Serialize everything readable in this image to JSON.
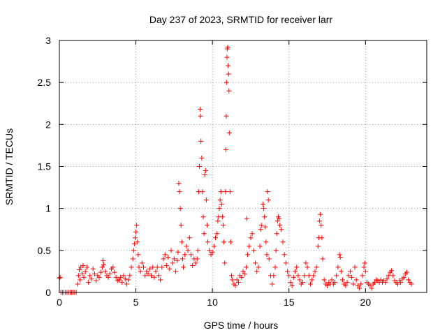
{
  "chart_data": {
    "type": "scatter",
    "title": "Day 237 of 2023, SRMTID for receiver larr",
    "xlabel": "GPS time / hours",
    "ylabel": "SRMTID / TECUs",
    "xlim": [
      0,
      24
    ],
    "ylim": [
      0,
      3
    ],
    "xticks": [
      0,
      5,
      10,
      15,
      20
    ],
    "xtick_labels": [
      "0",
      "5",
      "10",
      "15",
      "20"
    ],
    "yticks": [
      0,
      0.5,
      1,
      1.5,
      2,
      2.5,
      3
    ],
    "ytick_labels": [
      "0",
      "0.5",
      "1",
      "1.5",
      "2",
      "2.5",
      "3"
    ],
    "grid": true,
    "marker": "+",
    "color": "#ff0000",
    "series": [
      {
        "name": "SRMTID",
        "points": [
          [
            0.0,
            0.17
          ],
          [
            0.05,
            0.18
          ],
          [
            0.1,
            0.0
          ],
          [
            0.2,
            0.0
          ],
          [
            0.3,
            0.0
          ],
          [
            0.4,
            0.0
          ],
          [
            0.5,
            0.0
          ],
          [
            0.6,
            0.0
          ],
          [
            0.7,
            0.0
          ],
          [
            0.8,
            0.0
          ],
          [
            0.9,
            0.0
          ],
          [
            1.0,
            0.0
          ],
          [
            1.1,
            0.0
          ],
          [
            1.2,
            0.1
          ],
          [
            1.25,
            0.2
          ],
          [
            1.3,
            0.27
          ],
          [
            1.35,
            0.15
          ],
          [
            1.4,
            0.3
          ],
          [
            1.5,
            0.22
          ],
          [
            1.55,
            0.32
          ],
          [
            1.6,
            0.18
          ],
          [
            1.7,
            0.25
          ],
          [
            1.8,
            0.3
          ],
          [
            1.9,
            0.12
          ],
          [
            2.0,
            0.2
          ],
          [
            2.1,
            0.16
          ],
          [
            2.2,
            0.28
          ],
          [
            2.3,
            0.22
          ],
          [
            2.4,
            0.14
          ],
          [
            2.5,
            0.2
          ],
          [
            2.6,
            0.18
          ],
          [
            2.7,
            0.24
          ],
          [
            2.8,
            0.3
          ],
          [
            2.85,
            0.38
          ],
          [
            2.9,
            0.33
          ],
          [
            3.0,
            0.25
          ],
          [
            3.1,
            0.2
          ],
          [
            3.2,
            0.18
          ],
          [
            3.3,
            0.22
          ],
          [
            3.4,
            0.28
          ],
          [
            3.5,
            0.3
          ],
          [
            3.6,
            0.24
          ],
          [
            3.7,
            0.18
          ],
          [
            3.8,
            0.14
          ],
          [
            3.9,
            0.15
          ],
          [
            4.0,
            0.18
          ],
          [
            4.1,
            0.12
          ],
          [
            4.2,
            0.2
          ],
          [
            4.3,
            0.16
          ],
          [
            4.4,
            0.1
          ],
          [
            4.5,
            0.15
          ],
          [
            4.6,
            0.2
          ],
          [
            4.7,
            0.3
          ],
          [
            4.8,
            0.4
          ],
          [
            4.85,
            0.5
          ],
          [
            4.9,
            0.58
          ],
          [
            4.95,
            0.65
          ],
          [
            5.0,
            0.72
          ],
          [
            5.05,
            0.8
          ],
          [
            5.1,
            0.6
          ],
          [
            5.15,
            0.45
          ],
          [
            5.2,
            0.3
          ],
          [
            5.3,
            0.25
          ],
          [
            5.4,
            0.35
          ],
          [
            5.5,
            0.3
          ],
          [
            5.6,
            0.2
          ],
          [
            5.7,
            0.25
          ],
          [
            5.8,
            0.22
          ],
          [
            5.9,
            0.28
          ],
          [
            6.0,
            0.2
          ],
          [
            6.1,
            0.3
          ],
          [
            6.2,
            0.18
          ],
          [
            6.3,
            0.25
          ],
          [
            6.4,
            0.3
          ],
          [
            6.5,
            0.2
          ],
          [
            6.6,
            0.15
          ],
          [
            6.7,
            0.3
          ],
          [
            6.8,
            0.4
          ],
          [
            6.9,
            0.45
          ],
          [
            7.0,
            0.32
          ],
          [
            7.1,
            0.42
          ],
          [
            7.2,
            0.28
          ],
          [
            7.3,
            0.5
          ],
          [
            7.4,
            0.35
          ],
          [
            7.5,
            0.4
          ],
          [
            7.6,
            0.25
          ],
          [
            7.7,
            0.38
          ],
          [
            7.75,
            0.48
          ],
          [
            7.8,
            1.3
          ],
          [
            7.85,
            1.2
          ],
          [
            7.9,
            1.0
          ],
          [
            7.95,
            0.8
          ],
          [
            8.0,
            0.6
          ],
          [
            8.05,
            0.4
          ],
          [
            8.1,
            0.3
          ],
          [
            8.2,
            0.45
          ],
          [
            8.3,
            0.55
          ],
          [
            8.4,
            0.5
          ],
          [
            8.5,
            0.65
          ],
          [
            8.6,
            0.45
          ],
          [
            8.7,
            0.32
          ],
          [
            8.8,
            0.4
          ],
          [
            8.9,
            0.35
          ],
          [
            9.0,
            0.4
          ],
          [
            9.05,
            0.5
          ],
          [
            9.1,
            1.2
          ],
          [
            9.15,
            1.5
          ],
          [
            9.2,
            2.18
          ],
          [
            9.22,
            2.1
          ],
          [
            9.25,
            1.8
          ],
          [
            9.3,
            1.6
          ],
          [
            9.35,
            1.2
          ],
          [
            9.4,
            0.9
          ],
          [
            9.45,
            0.7
          ],
          [
            9.5,
            1.4
          ],
          [
            9.55,
            1.45
          ],
          [
            9.6,
            1.1
          ],
          [
            9.65,
            0.8
          ],
          [
            9.7,
            0.6
          ],
          [
            9.8,
            0.5
          ],
          [
            9.9,
            0.45
          ],
          [
            10.0,
            0.48
          ],
          [
            10.1,
            0.55
          ],
          [
            10.2,
            0.65
          ],
          [
            10.3,
            0.7
          ],
          [
            10.35,
            0.85
          ],
          [
            10.4,
            0.9
          ],
          [
            10.45,
            1.0
          ],
          [
            10.5,
            1.1
          ],
          [
            10.55,
            1.2
          ],
          [
            10.6,
            1.05
          ],
          [
            10.65,
            0.9
          ],
          [
            10.7,
            0.8
          ],
          [
            10.75,
            0.6
          ],
          [
            10.8,
            0.35
          ],
          [
            10.85,
            1.2
          ],
          [
            10.88,
            1.7
          ],
          [
            10.9,
            2.1
          ],
          [
            10.92,
            2.5
          ],
          [
            10.95,
            2.8
          ],
          [
            10.97,
            2.9
          ],
          [
            11.0,
            2.92
          ],
          [
            11.02,
            2.7
          ],
          [
            11.05,
            2.6
          ],
          [
            11.08,
            2.4
          ],
          [
            11.1,
            1.9
          ],
          [
            11.15,
            1.2
          ],
          [
            11.2,
            0.6
          ],
          [
            11.25,
            0.2
          ],
          [
            11.3,
            0.15
          ],
          [
            11.4,
            0.1
          ],
          [
            11.5,
            0.08
          ],
          [
            11.6,
            0.15
          ],
          [
            11.7,
            0.12
          ],
          [
            11.8,
            0.2
          ],
          [
            11.9,
            0.18
          ],
          [
            12.0,
            0.25
          ],
          [
            12.1,
            0.22
          ],
          [
            12.2,
            0.3
          ],
          [
            12.25,
            0.88
          ],
          [
            12.3,
            0.45
          ],
          [
            12.4,
            0.55
          ],
          [
            12.5,
            0.65
          ],
          [
            12.6,
            0.7
          ],
          [
            12.7,
            0.5
          ],
          [
            12.8,
            0.35
          ],
          [
            12.9,
            0.25
          ],
          [
            13.0,
            0.3
          ],
          [
            13.1,
            0.55
          ],
          [
            13.15,
            0.75
          ],
          [
            13.2,
            0.8
          ],
          [
            13.3,
            1.05
          ],
          [
            13.35,
            1.0
          ],
          [
            13.4,
            0.9
          ],
          [
            13.45,
            0.78
          ],
          [
            13.5,
            0.6
          ],
          [
            13.55,
            0.45
          ],
          [
            13.6,
            1.2
          ],
          [
            13.65,
            1.1
          ],
          [
            13.7,
            0.4
          ],
          [
            13.8,
            0.2
          ],
          [
            13.9,
            0.1
          ],
          [
            14.0,
            0.2
          ],
          [
            14.1,
            0.3
          ],
          [
            14.15,
            0.5
          ],
          [
            14.2,
            0.7
          ],
          [
            14.25,
            0.85
          ],
          [
            14.3,
            0.9
          ],
          [
            14.35,
            0.88
          ],
          [
            14.4,
            0.8
          ],
          [
            14.5,
            0.75
          ],
          [
            14.6,
            0.6
          ],
          [
            14.7,
            0.45
          ],
          [
            14.8,
            0.35
          ],
          [
            14.9,
            0.25
          ],
          [
            15.0,
            0.2
          ],
          [
            15.1,
            0.12
          ],
          [
            15.2,
            0.08
          ],
          [
            15.3,
            0.18
          ],
          [
            15.4,
            0.25
          ],
          [
            15.5,
            0.3
          ],
          [
            15.6,
            0.2
          ],
          [
            15.7,
            0.15
          ],
          [
            15.8,
            0.1
          ],
          [
            15.9,
            0.12
          ],
          [
            16.0,
            0.2
          ],
          [
            16.1,
            0.35
          ],
          [
            16.2,
            0.3
          ],
          [
            16.3,
            0.2
          ],
          [
            16.4,
            0.1
          ],
          [
            16.5,
            0.15
          ],
          [
            16.6,
            0.2
          ],
          [
            16.7,
            0.25
          ],
          [
            16.8,
            0.3
          ],
          [
            16.9,
            0.55
          ],
          [
            16.95,
            0.65
          ],
          [
            17.0,
            0.85
          ],
          [
            17.05,
            0.93
          ],
          [
            17.1,
            0.8
          ],
          [
            17.15,
            0.65
          ],
          [
            17.2,
            0.4
          ],
          [
            17.3,
            0.15
          ],
          [
            17.4,
            0.1
          ],
          [
            17.5,
            0.08
          ],
          [
            17.6,
            0.12
          ],
          [
            17.7,
            0.1
          ],
          [
            17.8,
            0.15
          ],
          [
            17.9,
            0.1
          ],
          [
            18.0,
            0.12
          ],
          [
            18.1,
            0.2
          ],
          [
            18.2,
            0.3
          ],
          [
            18.3,
            0.45
          ],
          [
            18.35,
            0.42
          ],
          [
            18.4,
            0.25
          ],
          [
            18.5,
            0.15
          ],
          [
            18.6,
            0.1
          ],
          [
            18.7,
            0.08
          ],
          [
            18.8,
            0.12
          ],
          [
            18.9,
            0.2
          ],
          [
            19.0,
            0.25
          ],
          [
            19.1,
            0.18
          ],
          [
            19.2,
            0.1
          ],
          [
            19.3,
            0.3
          ],
          [
            19.4,
            0.15
          ],
          [
            19.5,
            0.08
          ],
          [
            19.6,
            0.05
          ],
          [
            19.7,
            0.1
          ],
          [
            19.8,
            0.2
          ],
          [
            19.9,
            0.3
          ],
          [
            19.95,
            0.35
          ],
          [
            20.0,
            0.25
          ],
          [
            20.1,
            0.12
          ],
          [
            20.2,
            0.1
          ],
          [
            20.3,
            0.08
          ],
          [
            20.4,
            0.05
          ],
          [
            20.5,
            0.1
          ],
          [
            20.6,
            0.12
          ],
          [
            20.7,
            0.15
          ],
          [
            20.8,
            0.14
          ],
          [
            20.9,
            0.12
          ],
          [
            21.0,
            0.15
          ],
          [
            21.1,
            0.12
          ],
          [
            21.2,
            0.14
          ],
          [
            21.3,
            0.12
          ],
          [
            21.4,
            0.16
          ],
          [
            21.5,
            0.2
          ],
          [
            21.6,
            0.24
          ],
          [
            21.7,
            0.26
          ],
          [
            21.8,
            0.2
          ],
          [
            21.9,
            0.14
          ],
          [
            22.0,
            0.12
          ],
          [
            22.1,
            0.1
          ],
          [
            22.2,
            0.14
          ],
          [
            22.3,
            0.12
          ],
          [
            22.4,
            0.16
          ],
          [
            22.5,
            0.18
          ],
          [
            22.6,
            0.22
          ],
          [
            22.7,
            0.24
          ],
          [
            22.8,
            0.15
          ],
          [
            22.9,
            0.12
          ],
          [
            23.0,
            0.1
          ]
        ]
      }
    ]
  }
}
